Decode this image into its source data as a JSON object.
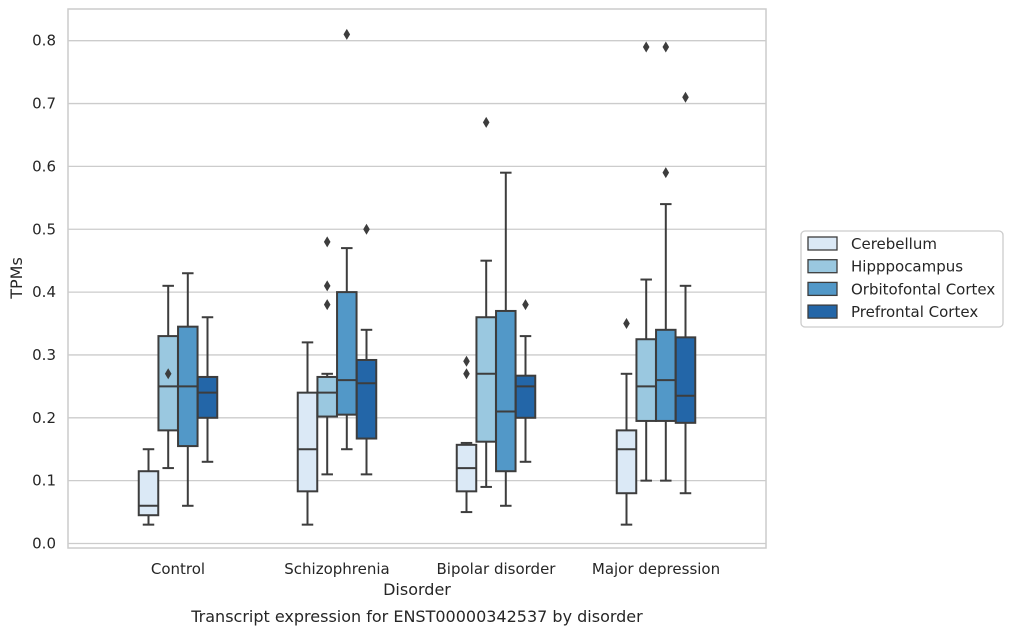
{
  "chart_data": {
    "type": "box",
    "title": "",
    "caption": "Transcript expression for ENST00000342537 by disorder",
    "xlabel": "Disorder",
    "ylabel": "TPMs",
    "ylim": [
      -0.01,
      0.85
    ],
    "yticks": [
      "0.0",
      "0.1",
      "0.2",
      "0.3",
      "0.4",
      "0.5",
      "0.6",
      "0.7",
      "0.8"
    ],
    "grid": "horizontal",
    "legend_position": "right",
    "categories": [
      "Control",
      "Schizophrenia",
      "Bipolar disorder",
      "Major depression"
    ],
    "series": [
      {
        "name": "Cerebellum",
        "color": "#dbe9f6",
        "boxes": [
          {
            "whislo": 0.03,
            "q1": 0.045,
            "med": 0.06,
            "q3": 0.115,
            "whishi": 0.15,
            "fliers": []
          },
          {
            "whislo": 0.03,
            "q1": 0.083,
            "med": 0.15,
            "q3": 0.24,
            "whishi": 0.32,
            "fliers": []
          },
          {
            "whislo": 0.05,
            "q1": 0.083,
            "med": 0.12,
            "q3": 0.157,
            "whishi": 0.16,
            "fliers": [
              0.27,
              0.29
            ]
          },
          {
            "whislo": 0.03,
            "q1": 0.08,
            "med": 0.15,
            "q3": 0.18,
            "whishi": 0.27,
            "fliers": [
              0.35
            ]
          }
        ]
      },
      {
        "name": "Hipppocampus",
        "color": "#9ac8e0",
        "boxes": [
          {
            "whislo": 0.12,
            "q1": 0.18,
            "med": 0.25,
            "q3": 0.33,
            "whishi": 0.41,
            "fliers": [
              0.27
            ]
          },
          {
            "whislo": 0.11,
            "q1": 0.202,
            "med": 0.24,
            "q3": 0.265,
            "whishi": 0.27,
            "fliers": [
              0.38,
              0.41,
              0.48
            ]
          },
          {
            "whislo": 0.09,
            "q1": 0.162,
            "med": 0.27,
            "q3": 0.36,
            "whishi": 0.45,
            "fliers": [
              0.67
            ]
          },
          {
            "whislo": 0.1,
            "q1": 0.195,
            "med": 0.25,
            "q3": 0.325,
            "whishi": 0.42,
            "fliers": [
              0.79
            ]
          }
        ]
      },
      {
        "name": "Orbitofontal Cortex",
        "color": "#5298c8",
        "boxes": [
          {
            "whislo": 0.06,
            "q1": 0.155,
            "med": 0.25,
            "q3": 0.345,
            "whishi": 0.43,
            "fliers": []
          },
          {
            "whislo": 0.15,
            "q1": 0.205,
            "med": 0.26,
            "q3": 0.4,
            "whishi": 0.47,
            "fliers": [
              0.81
            ]
          },
          {
            "whislo": 0.06,
            "q1": 0.115,
            "med": 0.21,
            "q3": 0.37,
            "whishi": 0.59,
            "fliers": []
          },
          {
            "whislo": 0.1,
            "q1": 0.195,
            "med": 0.26,
            "q3": 0.34,
            "whishi": 0.54,
            "fliers": [
              0.59,
              0.79
            ]
          }
        ]
      },
      {
        "name": "Prefrontal Cortex",
        "color": "#2366a8",
        "boxes": [
          {
            "whislo": 0.13,
            "q1": 0.2,
            "med": 0.24,
            "q3": 0.265,
            "whishi": 0.36,
            "fliers": []
          },
          {
            "whislo": 0.11,
            "q1": 0.167,
            "med": 0.255,
            "q3": 0.292,
            "whishi": 0.34,
            "fliers": [
              0.5
            ]
          },
          {
            "whislo": 0.13,
            "q1": 0.2,
            "med": 0.25,
            "q3": 0.267,
            "whishi": 0.33,
            "fliers": [
              0.38
            ]
          },
          {
            "whislo": 0.08,
            "q1": 0.192,
            "med": 0.235,
            "q3": 0.328,
            "whishi": 0.41,
            "fliers": [
              0.71
            ]
          }
        ]
      }
    ]
  }
}
